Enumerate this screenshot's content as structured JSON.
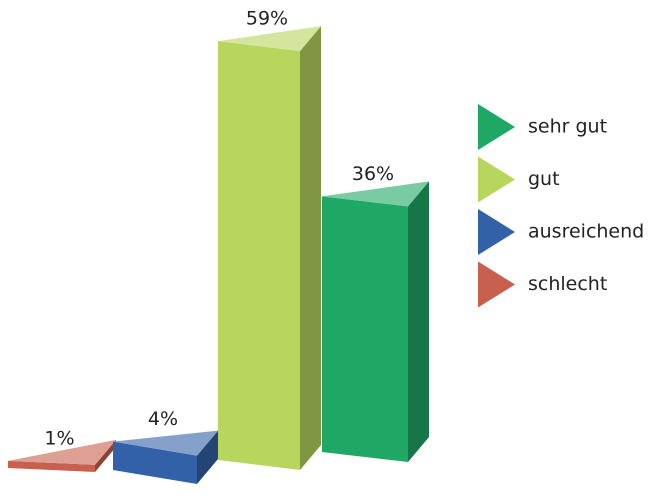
{
  "chart_data": {
    "type": "bar3d",
    "categories": [
      "schlecht",
      "ausreichend",
      "gut",
      "sehr gut"
    ],
    "values": [
      1,
      4,
      59,
      36
    ],
    "value_labels": [
      "1%",
      "4%",
      "59%",
      "36%"
    ],
    "colors": [
      "#c8604f",
      "#3361a8",
      "#b8d65e",
      "#1fa865"
    ]
  }
}
